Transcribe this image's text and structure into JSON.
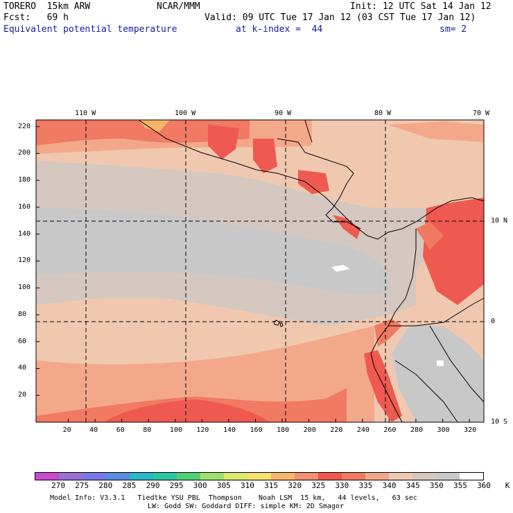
{
  "header": {
    "model": "TORERO  15km ARW",
    "center": "NCAR/MMM",
    "init": "Init: 12 UTC Sat 14 Jan 12",
    "fcst": "Fcst:   69 h",
    "valid": "Valid: 09 UTC Tue 17 Jan 12 (03 CST Tue 17 Jan 12)",
    "field": "Equivalent potential temperature",
    "level": "at k-index =  44",
    "smoothing": "sm= 2"
  },
  "map": {
    "top_lon_labels": [
      "110 W",
      "100 W",
      "90 W",
      "80 W",
      "70 W"
    ],
    "right_lat_labels": [
      "10 N",
      "0",
      "10 S"
    ],
    "y_ticks": [
      "220",
      "200",
      "180",
      "160",
      "140",
      "120",
      "100",
      "80",
      "60",
      "40",
      "20"
    ],
    "x_ticks": [
      "20",
      "40",
      "60",
      "80",
      "100",
      "120",
      "140",
      "160",
      "180",
      "200",
      "220",
      "240",
      "260",
      "280",
      "300",
      "320"
    ]
  },
  "colorbar": {
    "labels": [
      "270",
      "275",
      "280",
      "285",
      "290",
      "295",
      "300",
      "305",
      "310",
      "315",
      "320",
      "325",
      "330",
      "335",
      "340",
      "345",
      "350",
      "355",
      "360",
      "K"
    ],
    "colors": [
      "#c84ccc",
      "#9a6fd6",
      "#7a78e6",
      "#5a8ce0",
      "#2ab6c4",
      "#2ac8a0",
      "#52d078",
      "#9ee070",
      "#d8e870",
      "#f4e070",
      "#f6b46a",
      "#f29070",
      "#ee5a50",
      "#f07a62",
      "#f4a88a",
      "#f0c8b0",
      "#d4c8c0",
      "#c8c8c8",
      "#ffffff"
    ]
  },
  "footer": {
    "line1": "Model Info: V3.3.1   Tiedtke YSU PBL  Thompson    Noah LSM  15 km,   44 levels,   63 sec",
    "line2": "LW: Godd SW: Goddard DIFF: simple KM: 2D Smagor"
  }
}
